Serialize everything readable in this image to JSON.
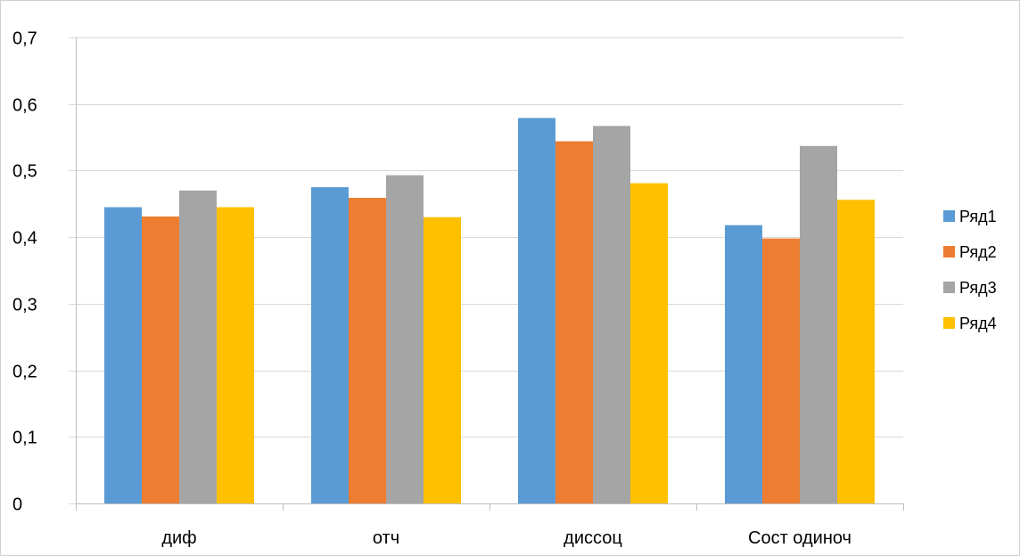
{
  "chart_data": {
    "type": "bar",
    "categories": [
      "диф",
      "отч",
      "диссоц",
      "Сост одиноч"
    ],
    "series": [
      {
        "name": "Ряд1",
        "color": "#5B9BD5",
        "values": [
          0.445,
          0.475,
          0.579,
          0.418
        ]
      },
      {
        "name": "Ряд2",
        "color": "#ED7D31",
        "values": [
          0.431,
          0.459,
          0.544,
          0.398
        ]
      },
      {
        "name": "Ряд3",
        "color": "#A5A5A5",
        "values": [
          0.47,
          0.493,
          0.567,
          0.537
        ]
      },
      {
        "name": "Ряд4",
        "color": "#FFC000",
        "values": [
          0.445,
          0.43,
          0.481,
          0.456
        ]
      }
    ],
    "y_ticks": [
      "0",
      "0,1",
      "0,2",
      "0,3",
      "0,4",
      "0,5",
      "0,6",
      "0,7"
    ],
    "ylim": [
      0,
      0.7
    ],
    "grid": true,
    "legend_position": "right",
    "title": "",
    "xlabel": "",
    "ylabel": ""
  }
}
